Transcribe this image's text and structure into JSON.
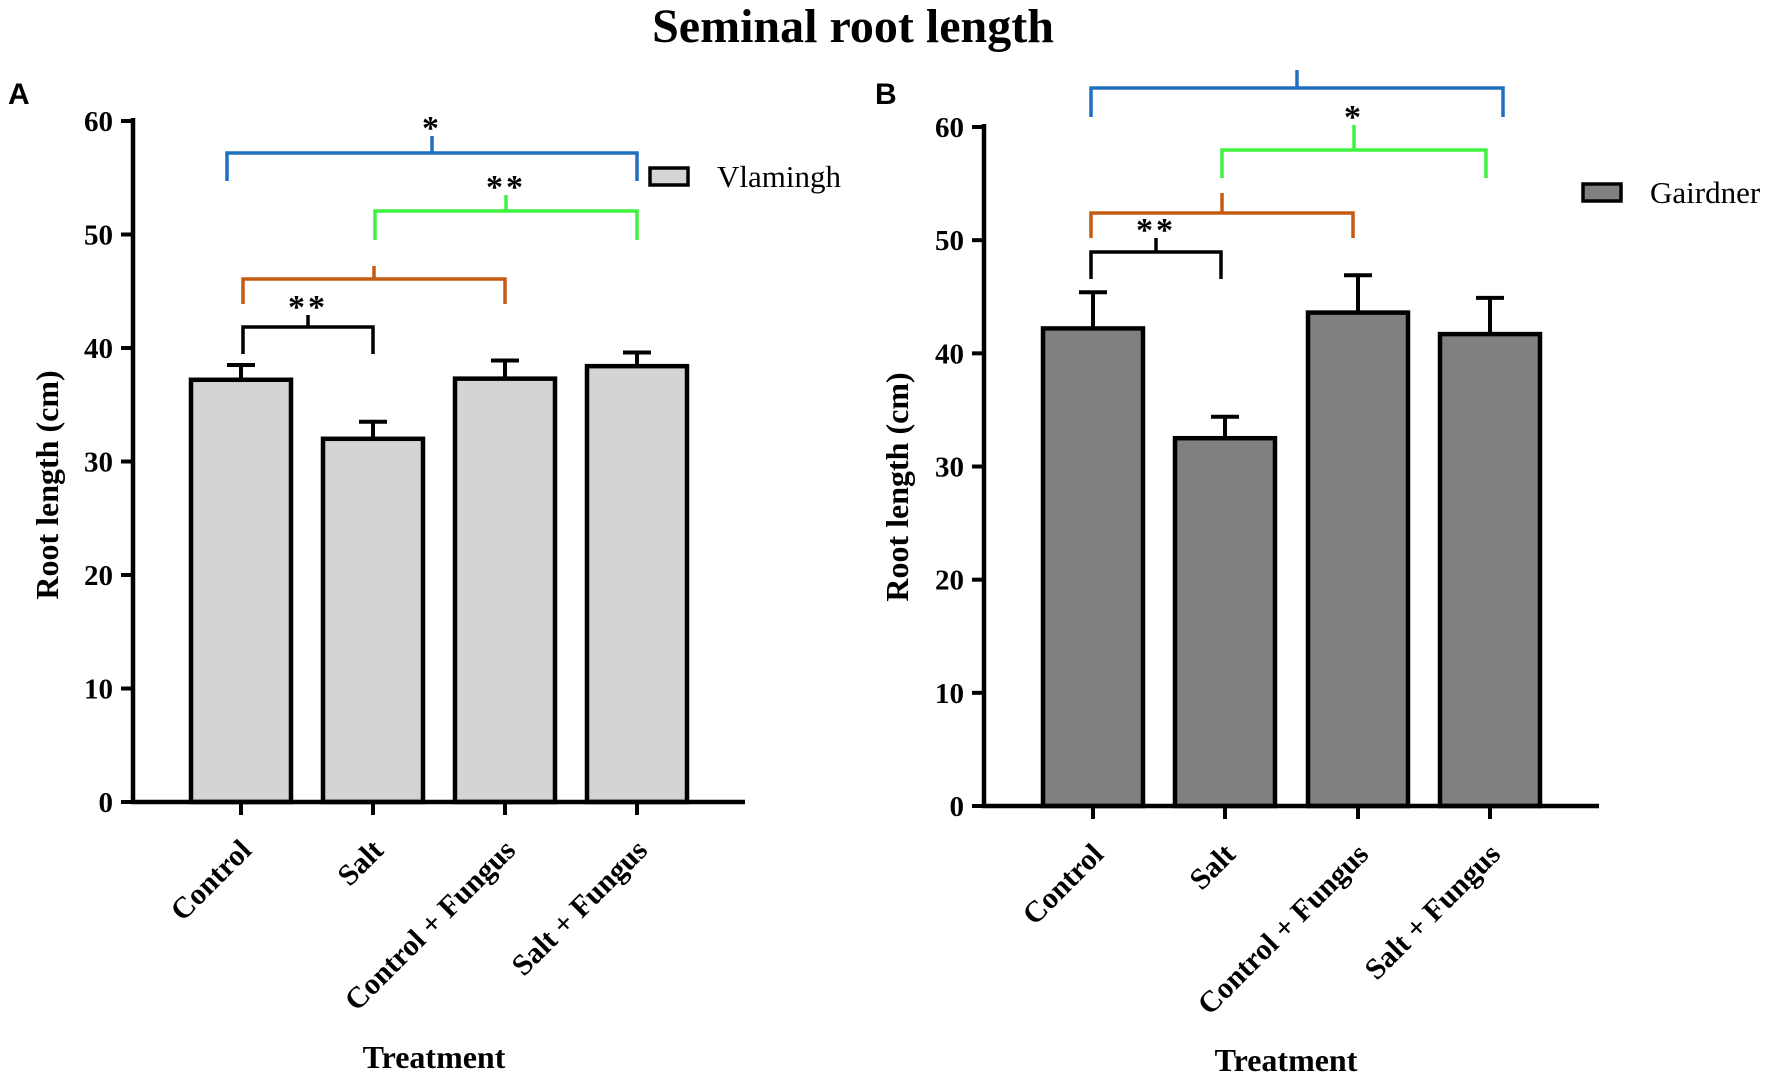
{
  "title": "Seminal root length",
  "chart_data": [
    {
      "panel": "A",
      "type": "bar",
      "categories": [
        "Control",
        "Salt",
        "Control + Fungus",
        "Salt + Fungus"
      ],
      "series": [
        {
          "name": "Vlamingh",
          "color": "#d4d4d4",
          "values": [
            37.2,
            32.0,
            37.3,
            38.4
          ],
          "errors": [
            1.3,
            1.5,
            1.6,
            1.2
          ]
        }
      ],
      "xlabel": "Treatment",
      "ylabel": "Root length (cm)",
      "ylim": [
        0,
        60
      ],
      "yticks": [
        0,
        10,
        20,
        30,
        40,
        50,
        60
      ],
      "legend_position": "top-right",
      "significance": [
        {
          "from": "Control",
          "to": "Salt + Fungus",
          "label": "*",
          "color": "#2070c0"
        },
        {
          "from": "Salt",
          "to": "Salt + Fungus",
          "label": "**",
          "color": "#3ff23f"
        },
        {
          "from": "Control",
          "to": "Control + Fungus",
          "color": "#c55a11"
        },
        {
          "from": "Control",
          "to": "Salt",
          "label": "**",
          "color": "#000000"
        }
      ]
    },
    {
      "panel": "B",
      "type": "bar",
      "categories": [
        "Control",
        "Salt",
        "Control + Fungus",
        "Salt + Fungus"
      ],
      "series": [
        {
          "name": "Gairdner",
          "color": "#808080",
          "values": [
            42.2,
            32.5,
            43.6,
            41.7
          ],
          "errors": [
            3.2,
            1.9,
            3.3,
            3.2
          ]
        }
      ],
      "xlabel": "Treatment",
      "ylabel": "Root length (cm)",
      "ylim": [
        0,
        60
      ],
      "yticks": [
        0,
        10,
        20,
        30,
        40,
        50,
        60
      ],
      "legend_position": "top-right",
      "significance": [
        {
          "from": "Control",
          "to": "Salt + Fungus",
          "color": "#2070c0"
        },
        {
          "from": "Salt",
          "to": "Salt + Fungus",
          "label": "*",
          "color": "#3ff23f"
        },
        {
          "from": "Control",
          "to": "Control + Fungus",
          "color": "#c55a11"
        },
        {
          "from": "Control",
          "to": "Salt",
          "label": "**",
          "color": "#000000"
        }
      ]
    }
  ]
}
